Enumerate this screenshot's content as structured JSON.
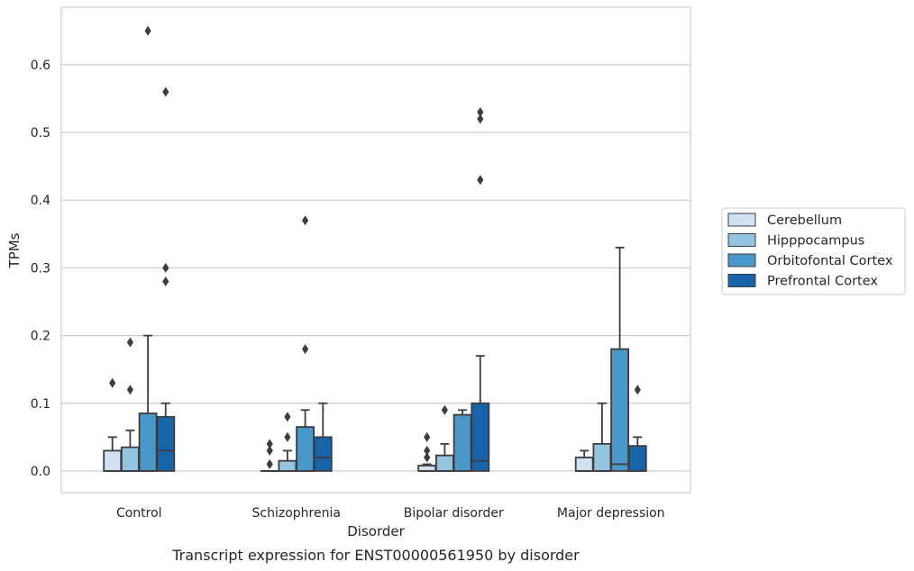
{
  "chart_data": {
    "type": "box",
    "title": "",
    "caption": "Transcript expression for ENST00000561950 by disorder",
    "xlabel": "Disorder",
    "ylabel": "TPMs",
    "ylim": [
      -0.032,
      0.685
    ],
    "yticks": [
      0.0,
      0.1,
      0.2,
      0.3,
      0.4,
      0.5,
      0.6
    ],
    "ytick_labels": [
      "0.0",
      "0.1",
      "0.2",
      "0.3",
      "0.4",
      "0.5",
      "0.6"
    ],
    "grid": true,
    "legend_position": "right",
    "categories": [
      "Control",
      "Schizophrenia",
      "Bipolar disorder",
      "Major depression"
    ],
    "series": [
      {
        "name": "Cerebellum",
        "color": "#d0e1f2",
        "boxes": [
          {
            "min": 0.0,
            "q1": 0.0,
            "median": 0.0,
            "q3": 0.03,
            "max": 0.05,
            "outliers": [
              0.13
            ]
          },
          {
            "min": 0.0,
            "q1": 0.0,
            "median": 0.0,
            "q3": 0.0,
            "max": 0.0,
            "outliers": [
              0.04,
              0.03,
              0.01
            ]
          },
          {
            "min": 0.0,
            "q1": 0.0,
            "median": 0.0,
            "q3": 0.008,
            "max": 0.01,
            "outliers": [
              0.05,
              0.03,
              0.02
            ]
          },
          {
            "min": 0.0,
            "q1": 0.0,
            "median": 0.0,
            "q3": 0.02,
            "max": 0.03,
            "outliers": []
          }
        ]
      },
      {
        "name": "Hipppocampus",
        "color": "#94c4df",
        "boxes": [
          {
            "min": 0.0,
            "q1": 0.0,
            "median": 0.0,
            "q3": 0.035,
            "max": 0.06,
            "outliers": [
              0.19,
              0.12
            ]
          },
          {
            "min": 0.0,
            "q1": 0.0,
            "median": 0.0,
            "q3": 0.015,
            "max": 0.03,
            "outliers": [
              0.08,
              0.05
            ]
          },
          {
            "min": 0.0,
            "q1": 0.0,
            "median": 0.0,
            "q3": 0.023,
            "max": 0.04,
            "outliers": [
              0.09
            ]
          },
          {
            "min": 0.0,
            "q1": 0.0,
            "median": 0.0,
            "q3": 0.04,
            "max": 0.1,
            "outliers": []
          }
        ]
      },
      {
        "name": "Orbitofontal Cortex",
        "color": "#4a98c9",
        "boxes": [
          {
            "min": 0.0,
            "q1": 0.0,
            "median": 0.0,
            "q3": 0.085,
            "max": 0.2,
            "outliers": [
              0.65
            ]
          },
          {
            "min": 0.0,
            "q1": 0.0,
            "median": 0.0,
            "q3": 0.065,
            "max": 0.09,
            "outliers": [
              0.37,
              0.18
            ]
          },
          {
            "min": 0.0,
            "q1": 0.0,
            "median": 0.0,
            "q3": 0.083,
            "max": 0.09,
            "outliers": []
          },
          {
            "min": 0.0,
            "q1": 0.0,
            "median": 0.01,
            "q3": 0.18,
            "max": 0.33,
            "outliers": []
          }
        ]
      },
      {
        "name": "Prefrontal Cortex",
        "color": "#1764ab",
        "boxes": [
          {
            "min": 0.0,
            "q1": 0.0,
            "median": 0.03,
            "q3": 0.08,
            "max": 0.1,
            "outliers": [
              0.56,
              0.3,
              0.28
            ]
          },
          {
            "min": 0.0,
            "q1": 0.0,
            "median": 0.02,
            "q3": 0.05,
            "max": 0.1,
            "outliers": []
          },
          {
            "min": 0.0,
            "q1": 0.0,
            "median": 0.015,
            "q3": 0.1,
            "max": 0.17,
            "outliers": [
              0.53,
              0.52,
              0.43
            ]
          },
          {
            "min": 0.0,
            "q1": 0.0,
            "median": 0.0,
            "q3": 0.037,
            "max": 0.05,
            "outliers": [
              0.12
            ]
          }
        ]
      }
    ]
  }
}
